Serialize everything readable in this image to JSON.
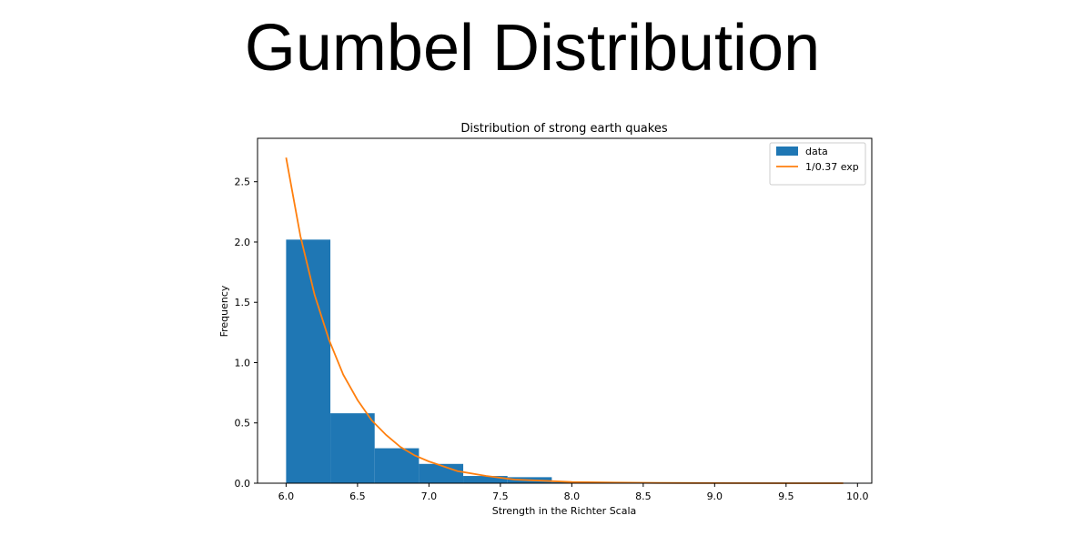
{
  "slide": {
    "title": "Gumbel Distribution"
  },
  "chart_data": {
    "type": "bar",
    "title": "Distribution of strong earth quakes",
    "xlabel": "Strength in the Richter Scala",
    "ylabel": "Frequency",
    "xlim": [
      5.8,
      10.1
    ],
    "ylim": [
      0,
      2.86
    ],
    "xticks": [
      6.0,
      6.5,
      7.0,
      7.5,
      8.0,
      8.5,
      9.0,
      9.5,
      10.0
    ],
    "xtick_labels": [
      "6.0",
      "6.5",
      "7.0",
      "7.5",
      "8.0",
      "8.5",
      "9.0",
      "9.5",
      "10.0"
    ],
    "yticks": [
      0.0,
      0.5,
      1.0,
      1.5,
      2.0,
      2.5
    ],
    "ytick_labels": [
      "0.0",
      "0.5",
      "1.0",
      "1.5",
      "2.0",
      "2.5"
    ],
    "legend_position": "top-right",
    "histogram": {
      "name": "data",
      "color": "#1f77b4",
      "bin_edges": [
        6.0,
        6.31,
        6.62,
        6.93,
        7.24,
        7.55,
        7.86,
        8.17,
        8.48,
        8.79,
        9.1,
        9.41,
        9.72
      ],
      "values": [
        2.02,
        0.58,
        0.29,
        0.16,
        0.06,
        0.05,
        0.01,
        0.005,
        0.0,
        0.0,
        0.0,
        0.0
      ]
    },
    "line": {
      "name": "1/0.37 exp",
      "color": "#ff7f0e",
      "x": [
        6.0,
        6.1,
        6.2,
        6.3,
        6.4,
        6.5,
        6.6,
        6.7,
        6.8,
        6.9,
        7.0,
        7.2,
        7.4,
        7.6,
        7.8,
        8.0,
        8.3,
        8.6,
        9.0,
        9.5,
        9.9
      ],
      "y": [
        2.7,
        2.05,
        1.56,
        1.19,
        0.9,
        0.69,
        0.52,
        0.4,
        0.3,
        0.23,
        0.18,
        0.1,
        0.06,
        0.03,
        0.02,
        0.01,
        0.005,
        0.002,
        0.001,
        0.0,
        0.0
      ]
    }
  }
}
